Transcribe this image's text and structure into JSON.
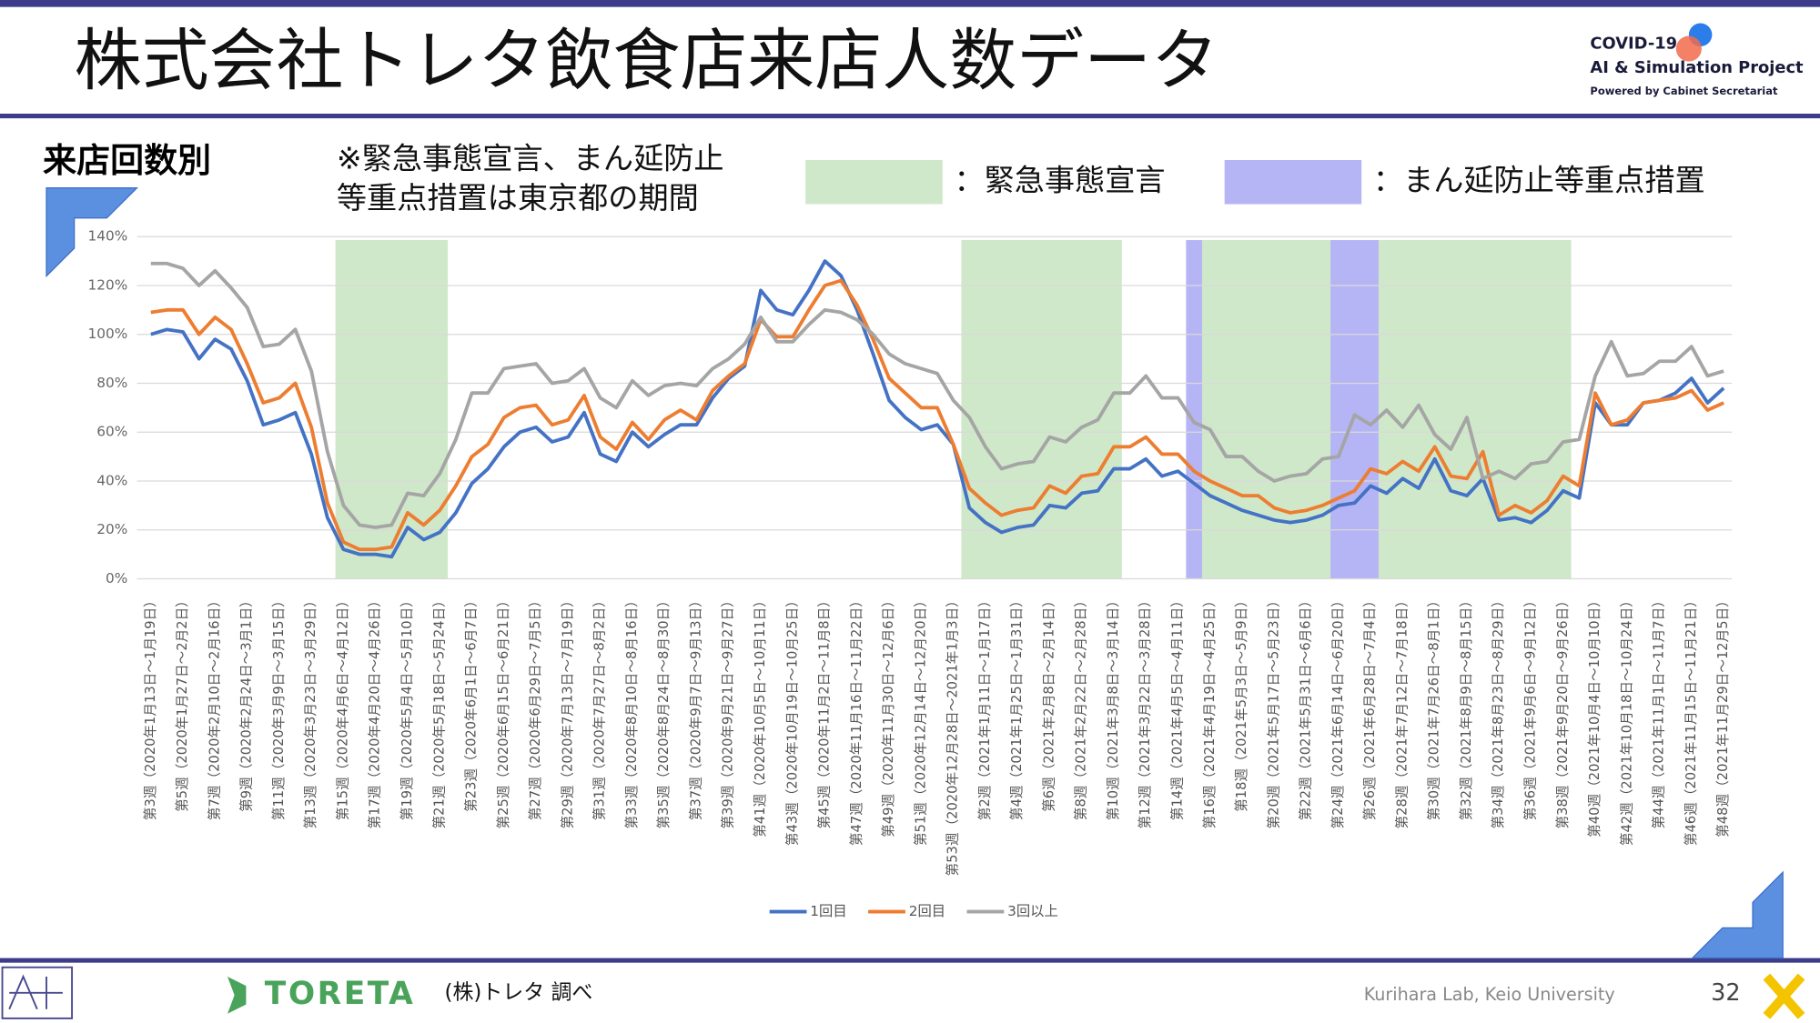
{
  "header": {
    "title": "株式会社トレタ飲食店来店人数データ",
    "logo": [
      "COVID-19",
      "AI & Simulation Project",
      "Powered by Cabinet Secretariat"
    ]
  },
  "chart_data": {
    "type": "line",
    "title": "来店回数別",
    "note": [
      "※緊急事態宣言、まん延防止",
      "等重点措置は東京都の期間"
    ],
    "periods": [
      {
        "name": "：緊急事態宣言",
        "color": "#cfe8c9",
        "ranges": [
          [
            12,
            18
          ],
          [
            51,
            60
          ],
          [
            66,
            73
          ],
          [
            77,
            88
          ]
        ]
      },
      {
        "name": "：まん延防止等重点措置",
        "color": "#b5b5f5",
        "ranges": [
          [
            65,
            65
          ],
          [
            74,
            76
          ]
        ]
      }
    ],
    "categories": [
      "第3週（2020年1月13日～1月19日）",
      null,
      "第5週（2020年1月27日～2月2日）",
      null,
      "第7週（2020年2月10日～2月16日）",
      null,
      "第9週（2020年2月24日～3月1日）",
      null,
      "第11週（2020年3月9日～3月15日）",
      null,
      "第13週（2020年3月23日～3月29日）",
      null,
      "第15週（2020年4月6日～4月12日）",
      null,
      "第17週（2020年4月20日～4月26日）",
      null,
      "第19週（2020年5月4日～5月10日）",
      null,
      "第21週（2020年5月18日～5月24日）",
      null,
      "第23週（2020年6月1日～6月7日）",
      null,
      "第25週（2020年6月15日～6月21日）",
      null,
      "第27週（2020年6月29日～7月5日）",
      null,
      "第29週（2020年7月13日～7月19日）",
      null,
      "第31週（2020年7月27日～8月2日）",
      null,
      "第33週（2020年8月10日～8月16日）",
      null,
      "第35週（2020年8月24日～8月30日）",
      null,
      "第37週（2020年9月7日～9月13日）",
      null,
      "第39週（2020年9月21日～9月27日）",
      null,
      "第41週（2020年10月5日～10月11日）",
      null,
      "第43週（2020年10月19日～10月25日）",
      null,
      "第45週（2020年11月2日～11月8日）",
      null,
      "第47週（2020年11月16日～11月22日）",
      null,
      "第49週（2020年11月30日～12月6日）",
      null,
      "第51週（2020年12月14日～12月20日）",
      null,
      "第53週（2020年12月28日～2021年1月3日）",
      null,
      "第2週（2021年1月11日～1月17日）",
      null,
      "第4週（2021年1月25日～1月31日）",
      null,
      "第6週（2021年2月8日～2月14日）",
      null,
      "第8週（2021年2月22日～2月28日）",
      null,
      "第10週（2021年3月8日～3月14日）",
      null,
      "第12週（2021年3月22日～3月28日）",
      null,
      "第14週（2021年4月5日～4月11日）",
      null,
      "第16週（2021年4月19日～4月25日）",
      null,
      "第18週（2021年5月3日～5月9日）",
      null,
      "第20週（2021年5月17日～5月23日）",
      null,
      "第22週（2021年5月31日～6月6日）",
      null,
      "第24週（2021年6月14日～6月20日）",
      null,
      "第26週（2021年6月28日～7月4日）",
      null,
      "第28週（2021年7月12日～7月18日）",
      null,
      "第30週（2021年7月26日～8月1日）",
      null,
      "第32週（2021年8月9日～8月15日）",
      null,
      "第34週（2021年8月23日～8月29日）",
      null,
      "第36週（2021年9月6日～9月12日）",
      null,
      "第38週（2021年9月20日～9月26日）",
      null,
      "第40週（2021年10月4日～10月10日）",
      null,
      "第42週（2021年10月18日～10月24日）",
      null,
      "第44週（2021年11月1日～11月7日）",
      null,
      "第46週（2021年11月15日～11月21日）",
      null,
      "第48週（2021年11月29日～12月5日）"
    ],
    "series": [
      {
        "name": "1回目",
        "color": "#4472c4",
        "values": [
          100,
          102,
          101,
          90,
          98,
          94,
          81,
          63,
          65,
          68,
          51,
          25,
          12,
          10,
          10,
          9,
          21,
          16,
          19,
          27,
          39,
          45,
          54,
          60,
          62,
          56,
          58,
          68,
          51,
          48,
          60,
          54,
          59,
          63,
          63,
          74,
          82,
          87,
          118,
          110,
          108,
          118,
          130,
          124,
          110,
          92,
          73,
          66,
          61,
          63,
          55,
          29,
          23,
          19,
          21,
          22,
          30,
          29,
          35,
          36,
          45,
          45,
          49,
          42,
          44,
          39,
          34,
          31,
          28,
          26,
          24,
          23,
          24,
          26,
          30,
          31,
          38,
          35,
          41,
          37,
          49,
          36,
          34,
          41,
          24,
          25,
          23,
          28,
          36,
          33,
          72,
          63,
          63,
          72,
          73,
          76,
          82,
          72,
          78
        ]
      },
      {
        "name": "2回目",
        "color": "#ed7d31",
        "values": [
          109,
          110,
          110,
          100,
          107,
          102,
          88,
          72,
          74,
          80,
          62,
          31,
          15,
          12,
          12,
          13,
          27,
          22,
          28,
          38,
          50,
          55,
          66,
          70,
          71,
          63,
          65,
          75,
          58,
          53,
          64,
          57,
          65,
          69,
          65,
          77,
          83,
          88,
          106,
          99,
          99,
          110,
          120,
          122,
          112,
          98,
          82,
          76,
          70,
          70,
          55,
          37,
          31,
          26,
          28,
          29,
          38,
          35,
          42,
          43,
          54,
          54,
          58,
          51,
          51,
          44,
          40,
          37,
          34,
          34,
          29,
          27,
          28,
          30,
          33,
          36,
          45,
          43,
          48,
          44,
          54,
          42,
          41,
          52,
          26,
          30,
          27,
          32,
          42,
          38,
          76,
          63,
          65,
          72,
          73,
          74,
          77,
          69,
          72
        ]
      },
      {
        "name": "3回以上",
        "color": "#a5a5a5",
        "values": [
          129,
          129,
          127,
          120,
          126,
          119,
          111,
          95,
          96,
          102,
          85,
          52,
          30,
          22,
          21,
          22,
          35,
          34,
          43,
          57,
          76,
          76,
          86,
          87,
          88,
          80,
          81,
          86,
          74,
          70,
          81,
          75,
          79,
          80,
          79,
          86,
          90,
          96,
          107,
          97,
          97,
          104,
          110,
          109,
          106,
          100,
          92,
          88,
          86,
          84,
          73,
          66,
          54,
          45,
          47,
          48,
          58,
          56,
          62,
          65,
          76,
          76,
          83,
          74,
          74,
          64,
          61,
          50,
          50,
          44,
          40,
          42,
          43,
          49,
          50,
          67,
          63,
          69,
          62,
          71,
          59,
          53,
          66,
          41,
          44,
          41,
          47,
          48,
          56,
          57,
          83,
          97,
          83,
          84,
          89,
          89,
          95,
          83,
          85
        ]
      }
    ],
    "ylim": [
      0,
      140
    ],
    "yticks": [
      {
        "value": 0,
        "label": "0%"
      },
      {
        "value": 20,
        "label": "20%"
      },
      {
        "value": 40,
        "label": "40%"
      },
      {
        "value": 60,
        "label": "60%"
      },
      {
        "value": 80,
        "label": "80%"
      },
      {
        "value": 100,
        "label": "100%"
      },
      {
        "value": 120,
        "label": "120%"
      },
      {
        "value": 140,
        "label": "140%"
      }
    ],
    "grid": true,
    "legend": "bottom"
  },
  "footer": {
    "logo": "TORETA",
    "source": "(株)トレタ 調べ",
    "lab": "Kurihara Lab, Keio University",
    "page": "32"
  }
}
